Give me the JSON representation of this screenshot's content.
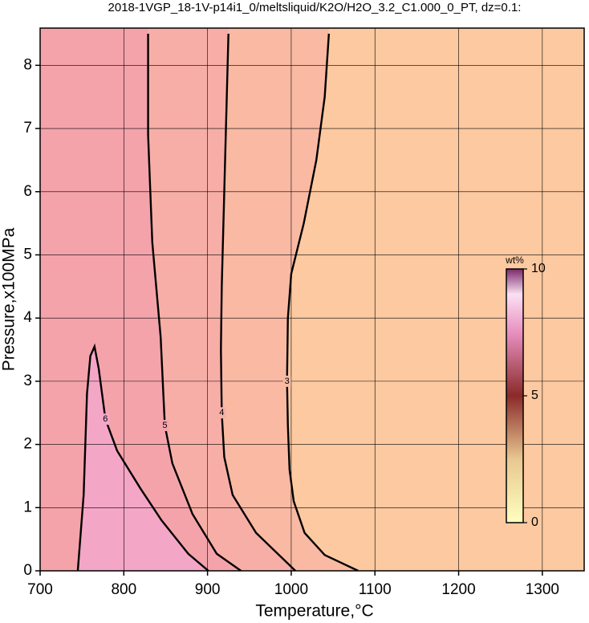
{
  "chart_data": {
    "type": "contour",
    "title": "2018-1VGP_18-1V-p14i1_0/meltsliquid/K2O/H2O_3.2_C1.000_0_PT, dz=0.1:",
    "x_label": "Temperature,°C",
    "y_label": "Pressure,x100MPa",
    "xlim": [
      700,
      1350
    ],
    "ylim": [
      0,
      8.5
    ],
    "xticks": [
      700,
      800,
      900,
      1000,
      1100,
      1200,
      1300
    ],
    "yticks": [
      0,
      1,
      2,
      3,
      4,
      5,
      6,
      7,
      8
    ],
    "grid": true,
    "background_color": "#fcc9a1",
    "contours": [
      {
        "level": 3,
        "color": "#f9b9a3",
        "x": [
          1045,
          1040,
          1030,
          1015,
          1000,
          996,
          995,
          996,
          998,
          1003,
          1016,
          1040,
          1080
        ],
        "y": [
          8.5,
          7.5,
          6.5,
          5.5,
          4.7,
          4.0,
          3.0,
          2.3,
          1.6,
          1.1,
          0.6,
          0.25,
          0
        ]
      },
      {
        "level": 4,
        "color": "#f7aea6",
        "x": [
          925,
          922,
          919,
          917,
          916,
          917,
          920,
          930,
          958,
          1005
        ],
        "y": [
          8.5,
          7,
          5.5,
          4.5,
          3.5,
          2.5,
          1.8,
          1.2,
          0.6,
          0
        ]
      },
      {
        "level": 5,
        "color": "#f4a3ab",
        "x": [
          829,
          829,
          834,
          844,
          849,
          858,
          882,
          911,
          940
        ],
        "y": [
          8.5,
          6.9,
          5.2,
          3.7,
          2.3,
          1.7,
          0.9,
          0.27,
          0
        ]
      },
      {
        "level": 6,
        "color": "#f4a6c6",
        "x": [
          745,
          752,
          756,
          760,
          765,
          770,
          778,
          792,
          820,
          845,
          877,
          901
        ],
        "y": [
          0,
          1.2,
          2.8,
          3.4,
          3.55,
          3.2,
          2.4,
          1.9,
          1.3,
          0.8,
          0.27,
          0
        ]
      }
    ],
    "colorbar": {
      "label": "wt%",
      "lim": [
        0,
        10
      ],
      "ticks": [
        0,
        5,
        10
      ]
    }
  }
}
